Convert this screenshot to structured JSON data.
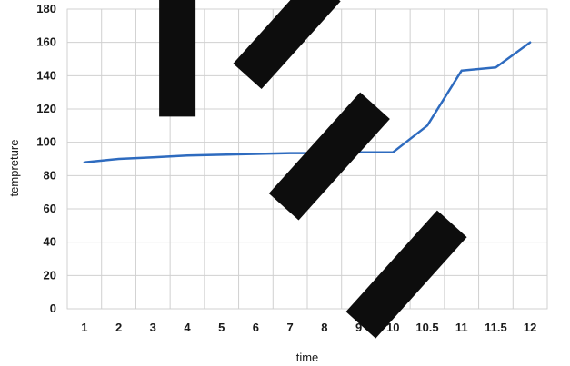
{
  "chart_data": {
    "type": "line",
    "title": "",
    "xlabel": "time",
    "ylabel": "tempreture",
    "categories": [
      "1",
      "2",
      "3",
      "4",
      "5",
      "6",
      "7",
      "8",
      "9",
      "10",
      "10.5",
      "11",
      "11.5",
      "12"
    ],
    "series": [
      {
        "values": [
          88,
          90,
          91,
          92,
          92.5,
          93,
          93.5,
          93.5,
          94,
          94,
          110,
          143,
          145,
          160
        ]
      }
    ],
    "ylim": [
      0,
      180
    ],
    "yticks": [
      "0",
      "20",
      "40",
      "60",
      "80",
      "100",
      "120",
      "140",
      "160",
      "180"
    ],
    "grid": true,
    "legend": "none",
    "colors": {
      "series": "#2e6bbf",
      "grid": "#d0d0d0"
    }
  }
}
